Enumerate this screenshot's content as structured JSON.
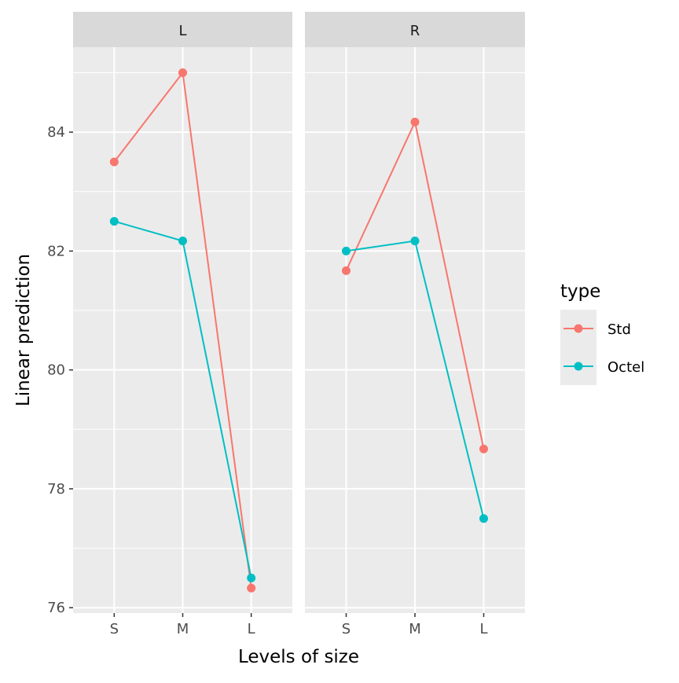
{
  "chart_data": {
    "type": "line",
    "facets": [
      "L",
      "R"
    ],
    "categories": [
      "S",
      "M",
      "L"
    ],
    "xlabel": "Levels of size",
    "ylabel": "Linear prediction",
    "ylim": [
      75.91,
      85.43
    ],
    "yticks": [
      76,
      78,
      80,
      82,
      84
    ],
    "grid": true,
    "legend": {
      "title": "type",
      "position": "right"
    },
    "series": [
      {
        "name": "Std",
        "color": "#F8766D",
        "values": {
          "L": [
            83.5,
            85.0,
            76.33
          ],
          "R": [
            81.67,
            84.17,
            78.67
          ]
        }
      },
      {
        "name": "Octel",
        "color": "#00BFC4",
        "values": {
          "L": [
            82.5,
            82.17,
            76.5
          ],
          "R": [
            82.0,
            82.17,
            77.5
          ]
        }
      }
    ]
  }
}
